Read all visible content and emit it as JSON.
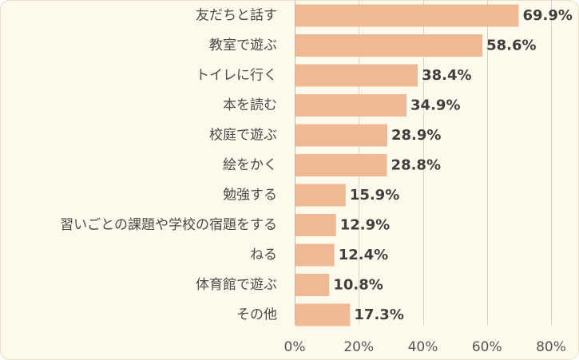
{
  "chart_data": {
    "type": "bar",
    "orientation": "horizontal",
    "categories": [
      "友だちと話す",
      "教室で遊ぶ",
      "トイレに行く",
      "本を読む",
      "校庭で遊ぶ",
      "絵をかく",
      "勉強する",
      "習いごとの課題や学校の宿題をする",
      "ねる",
      "体育館で遊ぶ",
      "その他"
    ],
    "values": [
      69.9,
      58.6,
      38.4,
      34.9,
      28.9,
      28.8,
      15.9,
      12.9,
      12.4,
      10.8,
      17.3
    ],
    "value_labels": [
      "69.9%",
      "58.6%",
      "38.4%",
      "34.9%",
      "28.9%",
      "28.8%",
      "15.9%",
      "12.9%",
      "12.4%",
      "10.8%",
      "17.3%"
    ],
    "xlim": [
      0,
      80
    ],
    "xticks": [
      0,
      20,
      40,
      60,
      80
    ],
    "xtick_labels": [
      "0%",
      "20%",
      "40%",
      "60%",
      "80%"
    ],
    "grid": true,
    "legend": "none",
    "colors": {
      "bar": "#efb995",
      "bar_border": "#e6a67c",
      "grid": "#d9d6c8",
      "background": "#fdfaec"
    }
  }
}
